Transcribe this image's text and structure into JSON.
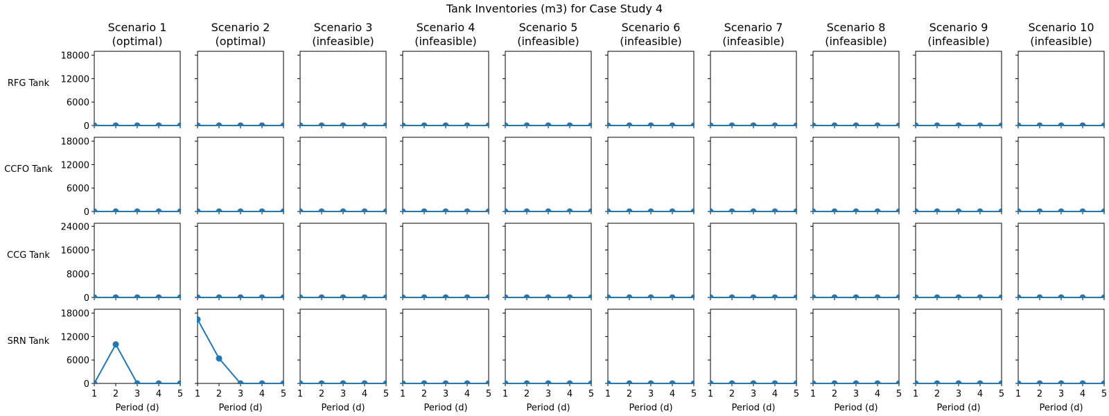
{
  "title": "Tank Inventories (m3) for Case Study 4",
  "colors": {
    "series": "#1f77b4",
    "axes": "#000000",
    "background": "#ffffff"
  },
  "chart_data": {
    "type": "line",
    "layout": "grid",
    "xlabel": "Period (d)",
    "x": [
      1,
      2,
      3,
      4,
      5
    ],
    "xlim": [
      1,
      5
    ],
    "x_ticks": [
      "1",
      "2",
      "3",
      "4",
      "5"
    ],
    "scenarios": [
      "Scenario 1\n(optimal)",
      "Scenario 2\n(optimal)",
      "Scenario 3\n(infeasible)",
      "Scenario 4\n(infeasible)",
      "Scenario 5\n(infeasible)",
      "Scenario 6\n(infeasible)",
      "Scenario 7\n(infeasible)",
      "Scenario 8\n(infeasible)",
      "Scenario 9\n(infeasible)",
      "Scenario 10\n(infeasible)"
    ],
    "rows": [
      {
        "label": "RFG Tank",
        "ylim": [
          0,
          19000
        ],
        "y_ticks": [
          0,
          6000,
          12000,
          18000
        ],
        "values": [
          [
            0,
            0,
            0,
            0,
            0
          ],
          [
            0,
            0,
            0,
            0,
            0
          ],
          [
            0,
            0,
            0,
            0,
            0
          ],
          [
            0,
            0,
            0,
            0,
            0
          ],
          [
            0,
            0,
            0,
            0,
            0
          ],
          [
            0,
            0,
            0,
            0,
            0
          ],
          [
            0,
            0,
            0,
            0,
            0
          ],
          [
            0,
            0,
            0,
            0,
            0
          ],
          [
            0,
            0,
            0,
            0,
            0
          ],
          [
            0,
            0,
            0,
            0,
            0
          ]
        ]
      },
      {
        "label": "CCFO Tank",
        "ylim": [
          0,
          19000
        ],
        "y_ticks": [
          0,
          6000,
          12000,
          18000
        ],
        "values": [
          [
            0,
            0,
            0,
            0,
            0
          ],
          [
            0,
            0,
            0,
            0,
            0
          ],
          [
            0,
            0,
            0,
            0,
            0
          ],
          [
            0,
            0,
            0,
            0,
            0
          ],
          [
            0,
            0,
            0,
            0,
            0
          ],
          [
            0,
            0,
            0,
            0,
            0
          ],
          [
            0,
            0,
            0,
            0,
            0
          ],
          [
            0,
            0,
            0,
            0,
            0
          ],
          [
            0,
            0,
            0,
            0,
            0
          ],
          [
            0,
            0,
            0,
            0,
            0
          ]
        ]
      },
      {
        "label": "CCG Tank",
        "ylim": [
          0,
          25000
        ],
        "y_ticks": [
          0,
          8000,
          16000,
          24000
        ],
        "values": [
          [
            0,
            0,
            0,
            0,
            0
          ],
          [
            0,
            0,
            0,
            0,
            0
          ],
          [
            0,
            0,
            0,
            0,
            0
          ],
          [
            0,
            0,
            0,
            0,
            0
          ],
          [
            0,
            0,
            0,
            0,
            0
          ],
          [
            0,
            0,
            0,
            0,
            0
          ],
          [
            0,
            0,
            0,
            0,
            0
          ],
          [
            0,
            0,
            0,
            0,
            0
          ],
          [
            0,
            0,
            0,
            0,
            0
          ],
          [
            0,
            0,
            0,
            0,
            0
          ]
        ]
      },
      {
        "label": "SRN Tank",
        "ylim": [
          0,
          19000
        ],
        "y_ticks": [
          0,
          6000,
          12000,
          18000
        ],
        "values": [
          [
            0,
            10000,
            0,
            0,
            0
          ],
          [
            16400,
            6400,
            0,
            0,
            0
          ],
          [
            0,
            0,
            0,
            0,
            0
          ],
          [
            0,
            0,
            0,
            0,
            0
          ],
          [
            0,
            0,
            0,
            0,
            0
          ],
          [
            0,
            0,
            0,
            0,
            0
          ],
          [
            0,
            0,
            0,
            0,
            0
          ],
          [
            0,
            0,
            0,
            0,
            0
          ],
          [
            0,
            0,
            0,
            0,
            0
          ],
          [
            0,
            0,
            0,
            0,
            0
          ]
        ]
      }
    ]
  }
}
